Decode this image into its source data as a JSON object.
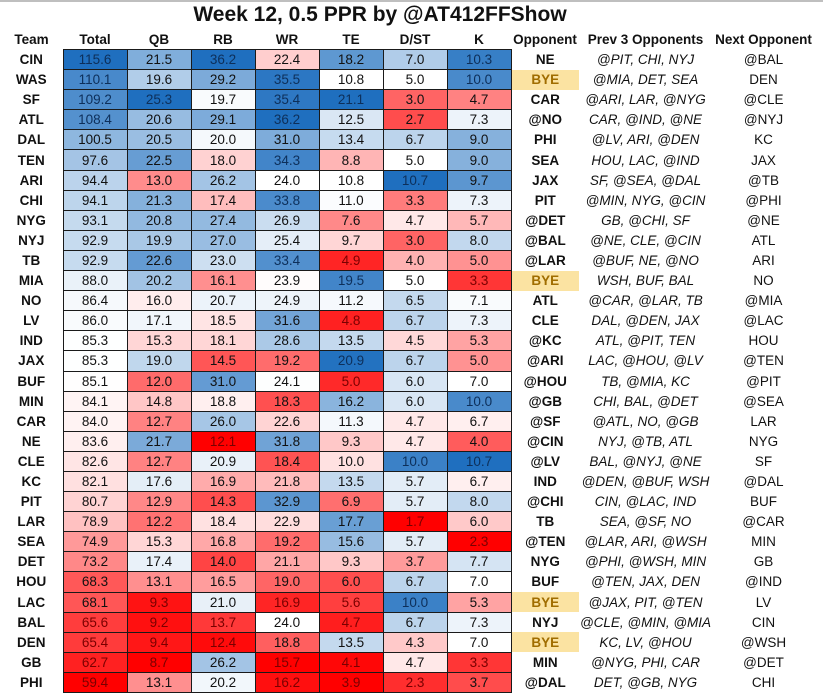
{
  "title": "Week 12, 0.5 PPR by @AT412FFShow",
  "colors": {
    "high": "#1f6fbf",
    "mid": "#ffffff",
    "low": "#ff0000",
    "bye_bg": "#fbe3a2",
    "bye_text": "#a06d00"
  },
  "chart_data": {
    "type": "table",
    "title": "Week 12, 0.5 PPR by @AT412FFShow",
    "columns": [
      "Team",
      "Total",
      "QB",
      "RB",
      "WR",
      "TE",
      "D/ST",
      "K",
      "Opponent",
      "Prev  3 Opponents",
      "Next Opponent"
    ],
    "numeric_columns": [
      "Total",
      "QB",
      "RB",
      "WR",
      "TE",
      "D/ST",
      "K"
    ],
    "color_scale": "per-column diverging: red (low) - white (mid) - blue (high)",
    "rows": [
      {
        "team": "CIN",
        "values": [
          115.6,
          21.5,
          36.2,
          22.4,
          18.2,
          7.0,
          10.3
        ],
        "opponent": "NE",
        "prev3": "@PIT, CHI, NYJ",
        "next": "@BAL"
      },
      {
        "team": "WAS",
        "values": [
          110.1,
          19.6,
          29.2,
          35.5,
          10.8,
          5.0,
          10.0
        ],
        "opponent": "BYE",
        "prev3": "@MIA, DET, SEA",
        "next": "DEN"
      },
      {
        "team": "SF",
        "values": [
          109.2,
          25.3,
          19.7,
          35.4,
          21.1,
          3.0,
          4.7
        ],
        "opponent": "CAR",
        "prev3": "@ARI, LAR, @NYG",
        "next": "@CLE"
      },
      {
        "team": "ATL",
        "values": [
          108.4,
          20.6,
          29.1,
          36.2,
          12.5,
          2.7,
          7.3
        ],
        "opponent": "@NO",
        "prev3": "CAR, @IND, @NE",
        "next": "@NYJ"
      },
      {
        "team": "DAL",
        "values": [
          100.5,
          20.5,
          20.0,
          31.0,
          13.4,
          6.7,
          9.0
        ],
        "opponent": "PHI",
        "prev3": "@LV, ARI, @DEN",
        "next": "KC"
      },
      {
        "team": "TEN",
        "values": [
          97.6,
          22.5,
          18.0,
          34.3,
          8.8,
          5.0,
          9.0
        ],
        "opponent": "SEA",
        "prev3": "HOU, LAC, @IND",
        "next": "JAX"
      },
      {
        "team": "ARI",
        "values": [
          94.4,
          13.0,
          26.2,
          24.0,
          10.8,
          10.7,
          9.7
        ],
        "opponent": "JAX",
        "prev3": "SF, @SEA, @DAL",
        "next": "@TB"
      },
      {
        "team": "CHI",
        "values": [
          94.1,
          21.3,
          17.4,
          33.8,
          11.0,
          3.3,
          7.3
        ],
        "opponent": "PIT",
        "prev3": "@MIN, NYG, @CIN",
        "next": "@PHI"
      },
      {
        "team": "NYG",
        "values": [
          93.1,
          20.8,
          27.4,
          26.9,
          7.6,
          4.7,
          5.7
        ],
        "opponent": "@DET",
        "prev3": "GB, @CHI, SF",
        "next": "@NE"
      },
      {
        "team": "NYJ",
        "values": [
          92.9,
          19.9,
          27.0,
          25.4,
          9.7,
          3.0,
          8.0
        ],
        "opponent": "@BAL",
        "prev3": "@NE, CLE, @CIN",
        "next": "ATL"
      },
      {
        "team": "TB",
        "values": [
          92.9,
          22.6,
          23.0,
          33.4,
          4.9,
          4.0,
          5.0
        ],
        "opponent": "@LAR",
        "prev3": "@BUF, NE, @NO",
        "next": "ARI"
      },
      {
        "team": "MIA",
        "values": [
          88.0,
          20.2,
          16.1,
          23.9,
          19.5,
          5.0,
          3.3
        ],
        "opponent": "BYE",
        "prev3": "WSH, BUF, BAL",
        "next": "NO"
      },
      {
        "team": "NO",
        "values": [
          86.4,
          16.0,
          20.7,
          24.9,
          11.2,
          6.5,
          7.1
        ],
        "opponent": "ATL",
        "prev3": "@CAR, @LAR, TB",
        "next": "@MIA"
      },
      {
        "team": "LV",
        "values": [
          86.0,
          17.1,
          18.5,
          31.6,
          4.8,
          6.7,
          7.3
        ],
        "opponent": "CLE",
        "prev3": "DAL, @DEN, JAX",
        "next": "@LAC"
      },
      {
        "team": "IND",
        "values": [
          85.3,
          15.3,
          18.1,
          28.6,
          13.5,
          4.5,
          5.3
        ],
        "opponent": "@KC",
        "prev3": "ATL, @PIT, TEN",
        "next": "HOU"
      },
      {
        "team": "JAX",
        "values": [
          85.3,
          19.0,
          14.5,
          19.2,
          20.9,
          6.7,
          5.0
        ],
        "opponent": "@ARI",
        "prev3": "LAC, @HOU, @LV",
        "next": "@TEN"
      },
      {
        "team": "BUF",
        "values": [
          85.1,
          12.0,
          31.0,
          24.1,
          5.0,
          6.0,
          7.0
        ],
        "opponent": "@HOU",
        "prev3": "TB, @MIA, KC",
        "next": "@PIT"
      },
      {
        "team": "MIN",
        "values": [
          84.1,
          14.8,
          18.8,
          18.3,
          16.2,
          6.0,
          10.0
        ],
        "opponent": "@GB",
        "prev3": "CHI, BAL, @DET",
        "next": "@SEA"
      },
      {
        "team": "CAR",
        "values": [
          84.0,
          12.7,
          26.0,
          22.6,
          11.3,
          4.7,
          6.7
        ],
        "opponent": "@SF",
        "prev3": "@ATL, NO, @GB",
        "next": "LAR"
      },
      {
        "team": "NE",
        "values": [
          83.6,
          21.7,
          12.1,
          31.8,
          9.3,
          4.7,
          4.0
        ],
        "opponent": "@CIN",
        "prev3": "NYJ, @TB, ATL",
        "next": "NYG"
      },
      {
        "team": "CLE",
        "values": [
          82.6,
          12.7,
          20.9,
          18.4,
          10.0,
          10.0,
          10.7
        ],
        "opponent": "@LV",
        "prev3": "BAL, @NYJ, @NE",
        "next": "SF"
      },
      {
        "team": "KC",
        "values": [
          82.1,
          17.6,
          16.9,
          21.8,
          13.5,
          5.7,
          6.7
        ],
        "opponent": "IND",
        "prev3": "@DEN, @BUF, WSH",
        "next": "@DAL"
      },
      {
        "team": "PIT",
        "values": [
          80.7,
          12.9,
          14.3,
          32.9,
          6.9,
          5.7,
          8.0
        ],
        "opponent": "@CHI",
        "prev3": "CIN, @LAC, IND",
        "next": "BUF"
      },
      {
        "team": "LAR",
        "values": [
          78.9,
          12.2,
          18.4,
          22.9,
          17.7,
          1.7,
          6.0
        ],
        "opponent": "TB",
        "prev3": "SEA, @SF, NO",
        "next": "@CAR"
      },
      {
        "team": "SEA",
        "values": [
          74.9,
          15.3,
          16.8,
          19.2,
          15.6,
          5.7,
          2.3
        ],
        "opponent": "@TEN",
        "prev3": "@LAR, ARI, @WSH",
        "next": "MIN"
      },
      {
        "team": "DET",
        "values": [
          73.2,
          17.4,
          14.0,
          21.1,
          9.3,
          3.7,
          7.7
        ],
        "opponent": "NYG",
        "prev3": "@PHI, @WSH, MIN",
        "next": "GB"
      },
      {
        "team": "HOU",
        "values": [
          68.3,
          13.1,
          16.5,
          19.0,
          6.0,
          6.7,
          7.0
        ],
        "opponent": "BUF",
        "prev3": "@TEN, JAX, DEN",
        "next": "@IND"
      },
      {
        "team": "LAC",
        "values": [
          68.1,
          9.3,
          21.0,
          16.9,
          5.6,
          10.0,
          5.3
        ],
        "opponent": "BYE",
        "prev3": "@JAX, PIT, @TEN",
        "next": "LV"
      },
      {
        "team": "BAL",
        "values": [
          65.6,
          9.2,
          13.7,
          24.0,
          4.7,
          6.7,
          7.3
        ],
        "opponent": "NYJ",
        "prev3": "@CLE, @MIN, @MIA",
        "next": "CIN"
      },
      {
        "team": "DEN",
        "values": [
          65.4,
          9.4,
          12.4,
          18.8,
          13.5,
          4.3,
          7.0
        ],
        "opponent": "BYE",
        "prev3": "KC, LV, @HOU",
        "next": "@WSH"
      },
      {
        "team": "GB",
        "values": [
          62.7,
          8.7,
          26.2,
          15.7,
          4.1,
          4.7,
          3.3
        ],
        "opponent": "MIN",
        "prev3": "@NYG, PHI, CAR",
        "next": "@DET"
      },
      {
        "team": "PHI",
        "values": [
          59.4,
          13.1,
          20.2,
          16.2,
          3.9,
          2.3,
          3.7
        ],
        "opponent": "@DAL",
        "prev3": "DET, @GB, NYG",
        "next": "CHI"
      }
    ]
  }
}
